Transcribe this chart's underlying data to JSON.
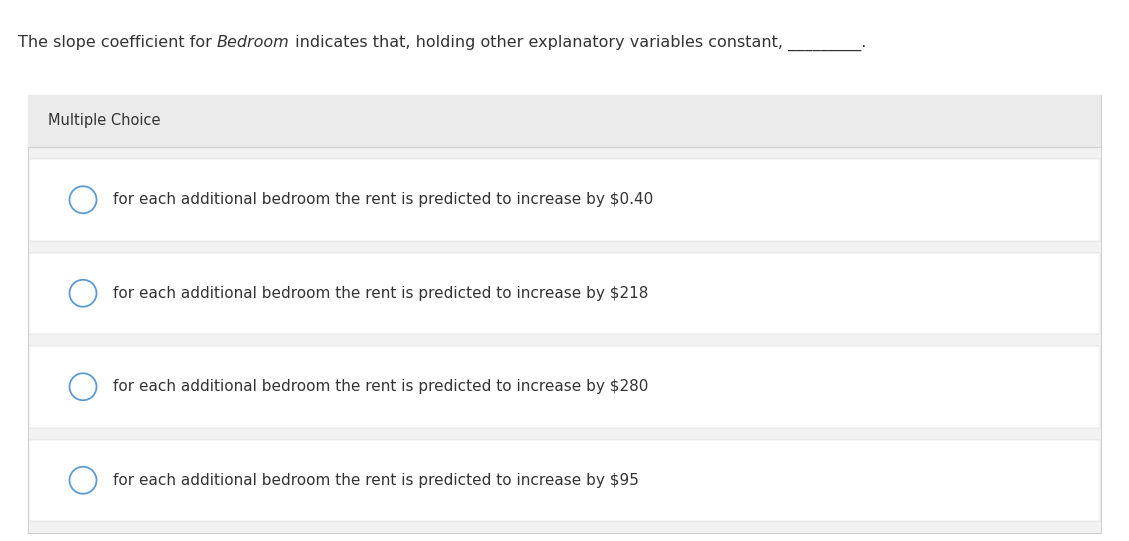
{
  "title_normal1": "The slope coefficient for ",
  "title_italic": "Bedroom",
  "title_normal2": " indicates that, holding other explanatory variables constant, _________.",
  "section_label": "Multiple Choice",
  "choices": [
    "for each additional bedroom the rent is predicted to increase by $0.40",
    "for each additional bedroom the rent is predicted to increase by $218",
    "for each additional bedroom the rent is predicted to increase by $280",
    "for each additional bedroom the rent is predicted to increase by $95"
  ],
  "page_bg": "#ffffff",
  "box_bg": "#f2f2f2",
  "white_color": "#ffffff",
  "text_color": "#333333",
  "header_bg": "#ebebeb",
  "circle_edge_color": "#5b9bd5",
  "circle_face_color": "#ffffff",
  "divider_color": "#d0d0d0",
  "title_fontsize": 11.5,
  "choice_fontsize": 11,
  "section_fontsize": 10.5,
  "fig_width": 11.29,
  "fig_height": 5.41
}
